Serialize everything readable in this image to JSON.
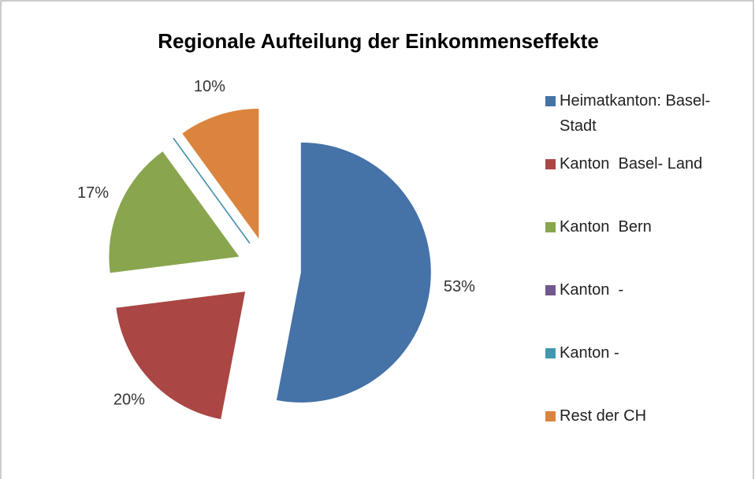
{
  "chart_data": {
    "type": "pie",
    "title": "Regionale Aufteilung der Einkommenseffekte",
    "categories": [
      "Heimatkanton: Basel-Stadt",
      "Kanton  Basel- Land",
      "Kanton  Bern",
      "Kanton  -",
      "Kanton -",
      "Rest der CH"
    ],
    "values": [
      53,
      20,
      17,
      0,
      0,
      10
    ],
    "value_labels": [
      "53%",
      "20%",
      "17%",
      null,
      null,
      "10%"
    ],
    "colors": [
      "#4572a7",
      "#aa4643",
      "#89a54e",
      "#71588f",
      "#4198af",
      "#db843d"
    ],
    "legend": "right"
  }
}
